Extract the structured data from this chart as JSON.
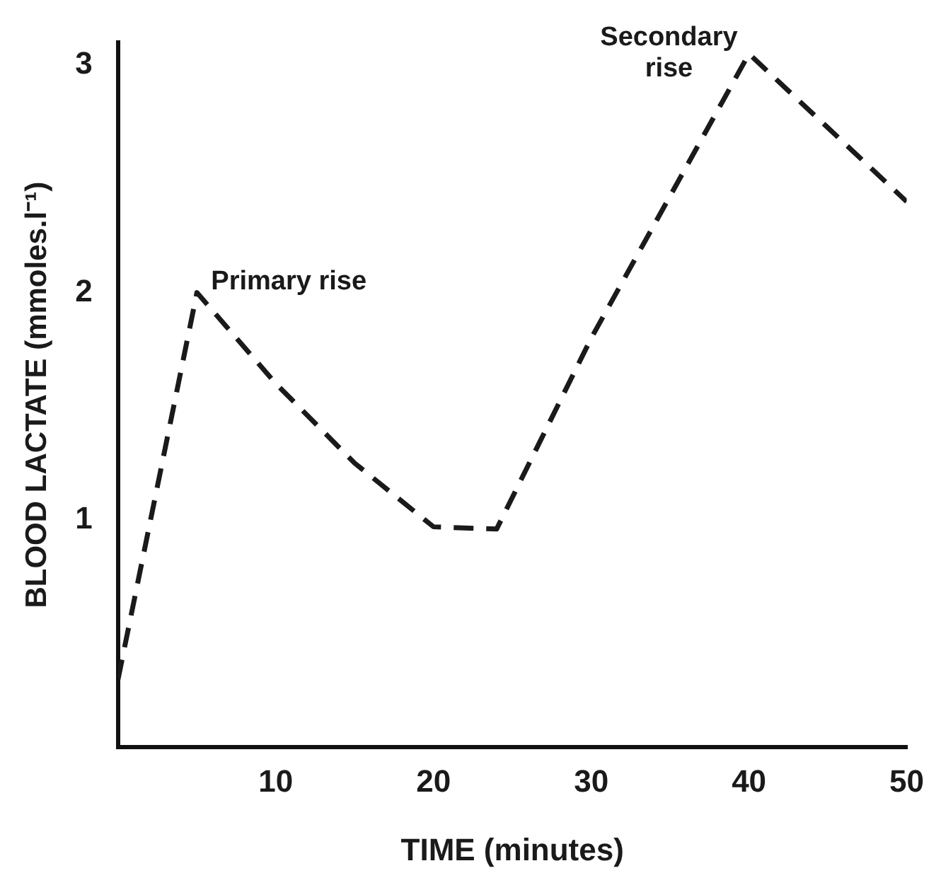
{
  "chart_data": {
    "type": "line",
    "xlabel": "TIME (minutes)",
    "ylabel": "BLOOD LACTATE (mmoles.l⁻¹)",
    "x": [
      0,
      5,
      10,
      15,
      20,
      24,
      30,
      40,
      50
    ],
    "series": [
      {
        "color": "#1a1a1a",
        "values": [
          0.3,
          2.0,
          1.6,
          1.25,
          0.97,
          0.96,
          1.8,
          3.05,
          2.4
        ]
      }
    ],
    "xlim": [
      0,
      50
    ],
    "xticks": [
      10,
      20,
      30,
      40,
      50
    ],
    "ylim": [
      0,
      3.1
    ],
    "yticks": [
      1,
      2,
      3
    ],
    "grid": false,
    "legend": false,
    "marker": "none",
    "line_style": "dashed",
    "annotations": [
      {
        "text": "Primary rise",
        "x": 5,
        "y": 2.0
      },
      {
        "text": "Secondary rise",
        "x": 40,
        "y": 3.05
      }
    ]
  }
}
